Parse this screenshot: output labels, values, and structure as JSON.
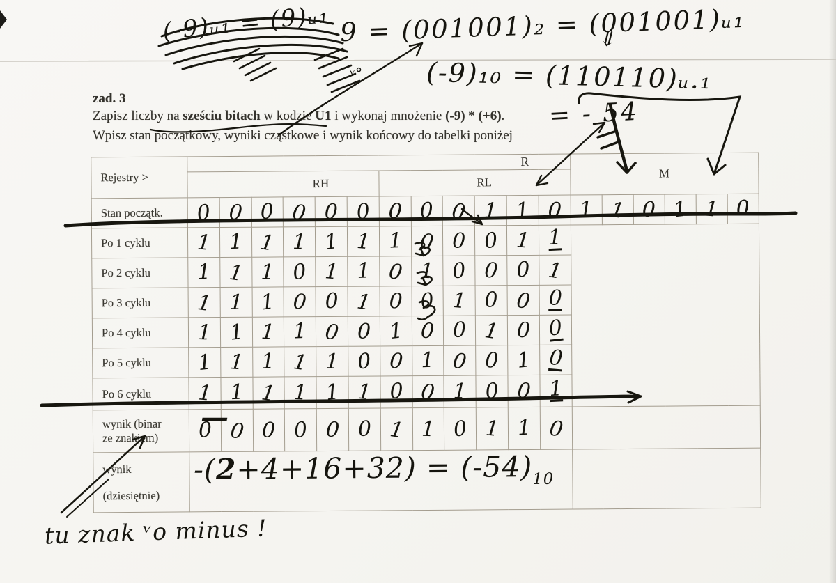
{
  "task": {
    "heading": "zad. 3",
    "line1_segments": [
      {
        "text": "Zapisz liczby na ",
        "bold": false
      },
      {
        "text": "sześciu bitach",
        "bold": true
      },
      {
        "text": " w kodzie ",
        "bold": false
      },
      {
        "text": "U1",
        "bold": true
      },
      {
        "text": " i wykonaj mnożenie ",
        "bold": false
      },
      {
        "text": "(-9) * (+6)",
        "bold": true
      },
      {
        "text": ".",
        "bold": false
      }
    ],
    "line2": "Wpisz stan początkowy, wyniki cząstkowe i wynik końcowy do tabelki poniżej"
  },
  "handwriting": {
    "crossed_out": "(-9)ᵤ₁ = (9)ᵤ₁",
    "eq_positive": "9 = (001001)₂ = (001001)ᵤ₁",
    "eq_negative": "(-9)₁₀ = (110110)ᵤ.₁",
    "insert_mark": "⇓",
    "product_result": "= - 54",
    "check_mark": "ᵛ°",
    "sign_minus": "—",
    "decimal_formula": {
      "pre": "-(",
      "emph": "2",
      "post": "+4+16+32) = (-54)",
      "sub": "10"
    },
    "bottom_note": "tu znak ᵛo minus !"
  },
  "table": {
    "corner_label": "Rejestry >",
    "reg_r": "R",
    "reg_rh": "RH",
    "reg_rl": "RL",
    "reg_m": "M",
    "rows": [
      {
        "kind": "bits",
        "label_lines": [
          "Stan początk."
        ],
        "r_bits": "000000000110",
        "m_bits": "110110"
      },
      {
        "kind": "bits",
        "label_lines": [
          "Po 1 cyklu"
        ],
        "r_bits": "111111100011",
        "underline_last": true,
        "m_block_start": true
      },
      {
        "kind": "bits",
        "label_lines": [
          "Po 2 cyklu"
        ],
        "r_bits": "111011010001"
      },
      {
        "kind": "bits",
        "label_lines": [
          "Po 3 cyklu"
        ],
        "r_bits": "111001001000",
        "underline_last": true
      },
      {
        "kind": "bits",
        "label_lines": [
          "Po 4 cyklu"
        ],
        "r_bits": "111100100100",
        "underline_last": true
      },
      {
        "kind": "bits",
        "label_lines": [
          "Po 5 cyklu"
        ],
        "r_bits": "111110010010",
        "underline_last": true
      },
      {
        "kind": "bits",
        "label_lines": [
          "Po 6 cyklu"
        ],
        "r_bits": "111111001001",
        "underline_last": true
      },
      {
        "kind": "bits",
        "label_lines": [
          "wynik (binar",
          "ze znakiem)"
        ],
        "r_bits": "000000110110",
        "m_empty": true
      },
      {
        "kind": "formula",
        "label_lines": [
          "wynik",
          "(dziesiętnie)"
        ],
        "m_empty": true
      }
    ]
  }
}
